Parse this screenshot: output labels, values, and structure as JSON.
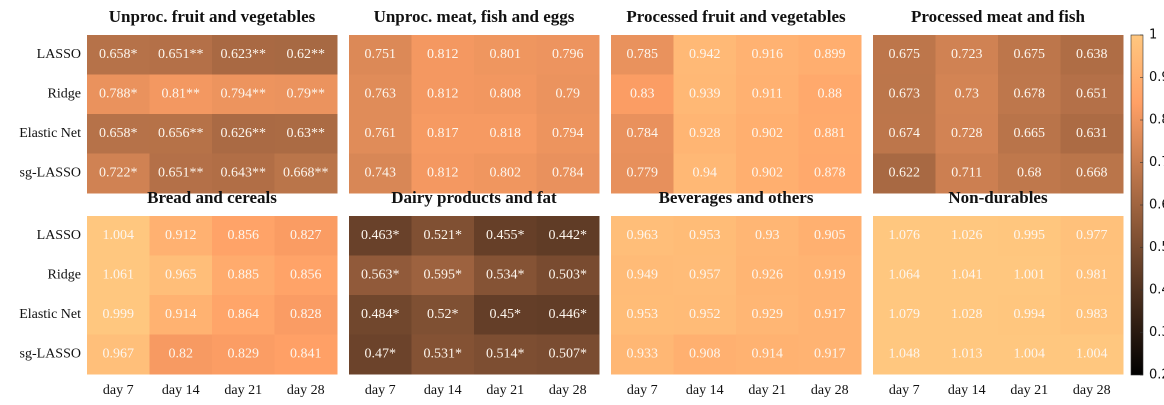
{
  "chart_data": {
    "type": "heatmap-grid",
    "rows": [
      "LASSO",
      "Ridge",
      "Elastic Net",
      "sg-LASSO"
    ],
    "columns": [
      "day 7",
      "day 14",
      "day 21",
      "day 28"
    ],
    "colormap": "copper",
    "colorbar": {
      "clim": [
        0.2,
        1
      ],
      "ticks": [
        0.2,
        0.3,
        0.4,
        0.5,
        0.6,
        0.7,
        0.8,
        0.9,
        1
      ]
    },
    "panels": [
      {
        "title": "Unproc. fruit and vegetables",
        "values": [
          [
            0.658,
            0.651,
            0.623,
            0.62
          ],
          [
            0.788,
            0.81,
            0.794,
            0.79
          ],
          [
            0.658,
            0.656,
            0.626,
            0.63
          ],
          [
            0.722,
            0.651,
            0.643,
            0.668
          ]
        ],
        "value_labels": [
          [
            "0.658*",
            "0.651**",
            "0.623**",
            "0.62**"
          ],
          [
            "0.788*",
            "0.81**",
            "0.794**",
            "0.79**"
          ],
          [
            "0.658*",
            "0.656**",
            "0.626**",
            "0.63**"
          ],
          [
            "0.722*",
            "0.651**",
            "0.643**",
            "0.668**"
          ]
        ]
      },
      {
        "title": "Unproc. meat, fish and eggs",
        "values": [
          [
            0.751,
            0.812,
            0.801,
            0.796
          ],
          [
            0.763,
            0.812,
            0.808,
            0.79
          ],
          [
            0.761,
            0.817,
            0.818,
            0.794
          ],
          [
            0.743,
            0.812,
            0.802,
            0.784
          ]
        ]
      },
      {
        "title": "Processed fruit and vegetables",
        "values": [
          [
            0.785,
            0.942,
            0.916,
            0.899
          ],
          [
            0.83,
            0.939,
            0.911,
            0.88
          ],
          [
            0.784,
            0.928,
            0.902,
            0.881
          ],
          [
            0.779,
            0.94,
            0.902,
            0.878
          ]
        ]
      },
      {
        "title": "Processed meat and fish",
        "values": [
          [
            0.675,
            0.723,
            0.675,
            0.638
          ],
          [
            0.673,
            0.73,
            0.678,
            0.651
          ],
          [
            0.674,
            0.728,
            0.665,
            0.631
          ],
          [
            0.622,
            0.711,
            0.68,
            0.668
          ]
        ]
      },
      {
        "title": "Bread and cereals",
        "values": [
          [
            1.004,
            0.912,
            0.856,
            0.827
          ],
          [
            1.061,
            0.965,
            0.885,
            0.856
          ],
          [
            0.999,
            0.914,
            0.864,
            0.828
          ],
          [
            0.967,
            0.82,
            0.829,
            0.841
          ]
        ]
      },
      {
        "title": "Dairy products and fat",
        "values": [
          [
            0.463,
            0.521,
            0.455,
            0.442
          ],
          [
            0.563,
            0.595,
            0.534,
            0.503
          ],
          [
            0.484,
            0.52,
            0.45,
            0.446
          ],
          [
            0.47,
            0.531,
            0.514,
            0.507
          ]
        ],
        "value_labels": [
          [
            "0.463*",
            "0.521*",
            "0.455*",
            "0.442*"
          ],
          [
            "0.563*",
            "0.595*",
            "0.534*",
            "0.503*"
          ],
          [
            "0.484*",
            "0.52*",
            "0.45*",
            "0.446*"
          ],
          [
            "0.47*",
            "0.531*",
            "0.514*",
            "0.507*"
          ]
        ]
      },
      {
        "title": "Beverages and others",
        "values": [
          [
            0.963,
            0.953,
            0.93,
            0.905
          ],
          [
            0.949,
            0.957,
            0.926,
            0.919
          ],
          [
            0.953,
            0.952,
            0.929,
            0.917
          ],
          [
            0.933,
            0.908,
            0.914,
            0.917
          ]
        ]
      },
      {
        "title": "Non-durables",
        "values": [
          [
            1.076,
            1.026,
            0.995,
            0.977
          ],
          [
            1.064,
            1.041,
            1.001,
            0.981
          ],
          [
            1.079,
            1.028,
            0.994,
            0.983
          ],
          [
            1.048,
            1.013,
            1.004,
            1.004
          ]
        ]
      }
    ]
  }
}
